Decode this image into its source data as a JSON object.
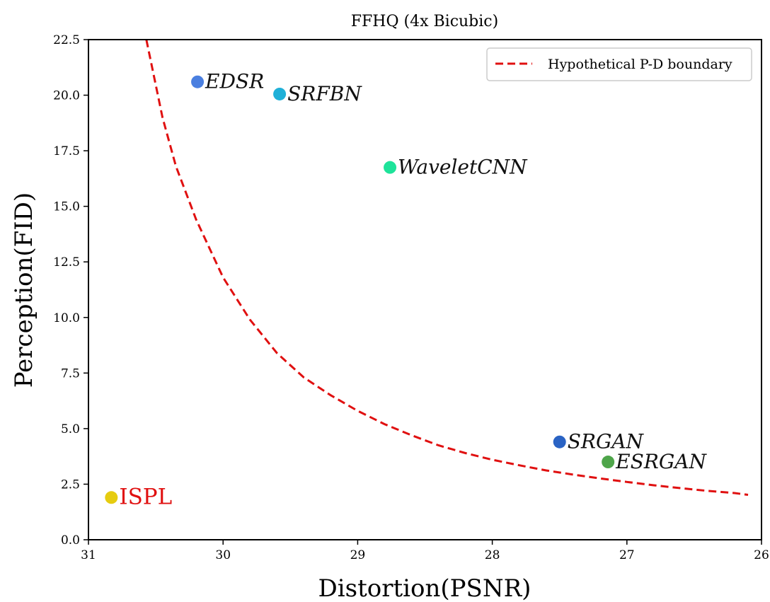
{
  "chart_data": {
    "type": "scatter",
    "title": "FFHQ (4x Bicubic)",
    "xlabel": "Distortion(PSNR)",
    "ylabel": "Perception(FID)",
    "xlim": [
      31,
      26
    ],
    "ylim": [
      0,
      22.5
    ],
    "x_reversed": true,
    "xticks": [
      31,
      30,
      29,
      28,
      27,
      26
    ],
    "yticks": [
      "0.0",
      "2.5",
      "5.0",
      "7.5",
      "10.0",
      "12.5",
      "15.0",
      "17.5",
      "20.0",
      "22.5"
    ],
    "grid": false,
    "legend": {
      "placement": "top-right",
      "entries": [
        "Hypothetical P-D boundary"
      ]
    },
    "points": [
      {
        "label": "EDSR",
        "x": 30.19,
        "y": 20.6,
        "color": "#4a7fe0"
      },
      {
        "label": "SRFBN",
        "x": 29.58,
        "y": 20.05,
        "color": "#1fb0d8"
      },
      {
        "label": "WaveletCNN",
        "x": 28.76,
        "y": 16.75,
        "color": "#1ee39a"
      },
      {
        "label": "SRGAN",
        "x": 27.5,
        "y": 4.4,
        "color": "#2a63c4"
      },
      {
        "label": "ESRGAN",
        "x": 27.14,
        "y": 3.5,
        "color": "#4ea54a"
      },
      {
        "label": "ISPL",
        "x": 30.83,
        "y": 1.9,
        "color": "#e6cc10",
        "highlight": true
      }
    ],
    "curve": {
      "name": "Hypothetical P-D boundary",
      "style": "dashed",
      "color": "#e01010",
      "points": [
        [
          30.57,
          22.5
        ],
        [
          30.45,
          19.0
        ],
        [
          30.35,
          16.8
        ],
        [
          30.2,
          14.4
        ],
        [
          30.0,
          11.8
        ],
        [
          29.8,
          9.9
        ],
        [
          29.6,
          8.4
        ],
        [
          29.4,
          7.3
        ],
        [
          29.2,
          6.5
        ],
        [
          29.0,
          5.8
        ],
        [
          28.8,
          5.2
        ],
        [
          28.6,
          4.7
        ],
        [
          28.4,
          4.25
        ],
        [
          28.2,
          3.9
        ],
        [
          28.0,
          3.6
        ],
        [
          27.8,
          3.35
        ],
        [
          27.6,
          3.12
        ],
        [
          27.4,
          2.93
        ],
        [
          27.2,
          2.76
        ],
        [
          27.0,
          2.6
        ],
        [
          26.8,
          2.45
        ],
        [
          26.6,
          2.32
        ],
        [
          26.4,
          2.2
        ],
        [
          26.2,
          2.1
        ],
        [
          26.1,
          2.02
        ]
      ]
    }
  }
}
